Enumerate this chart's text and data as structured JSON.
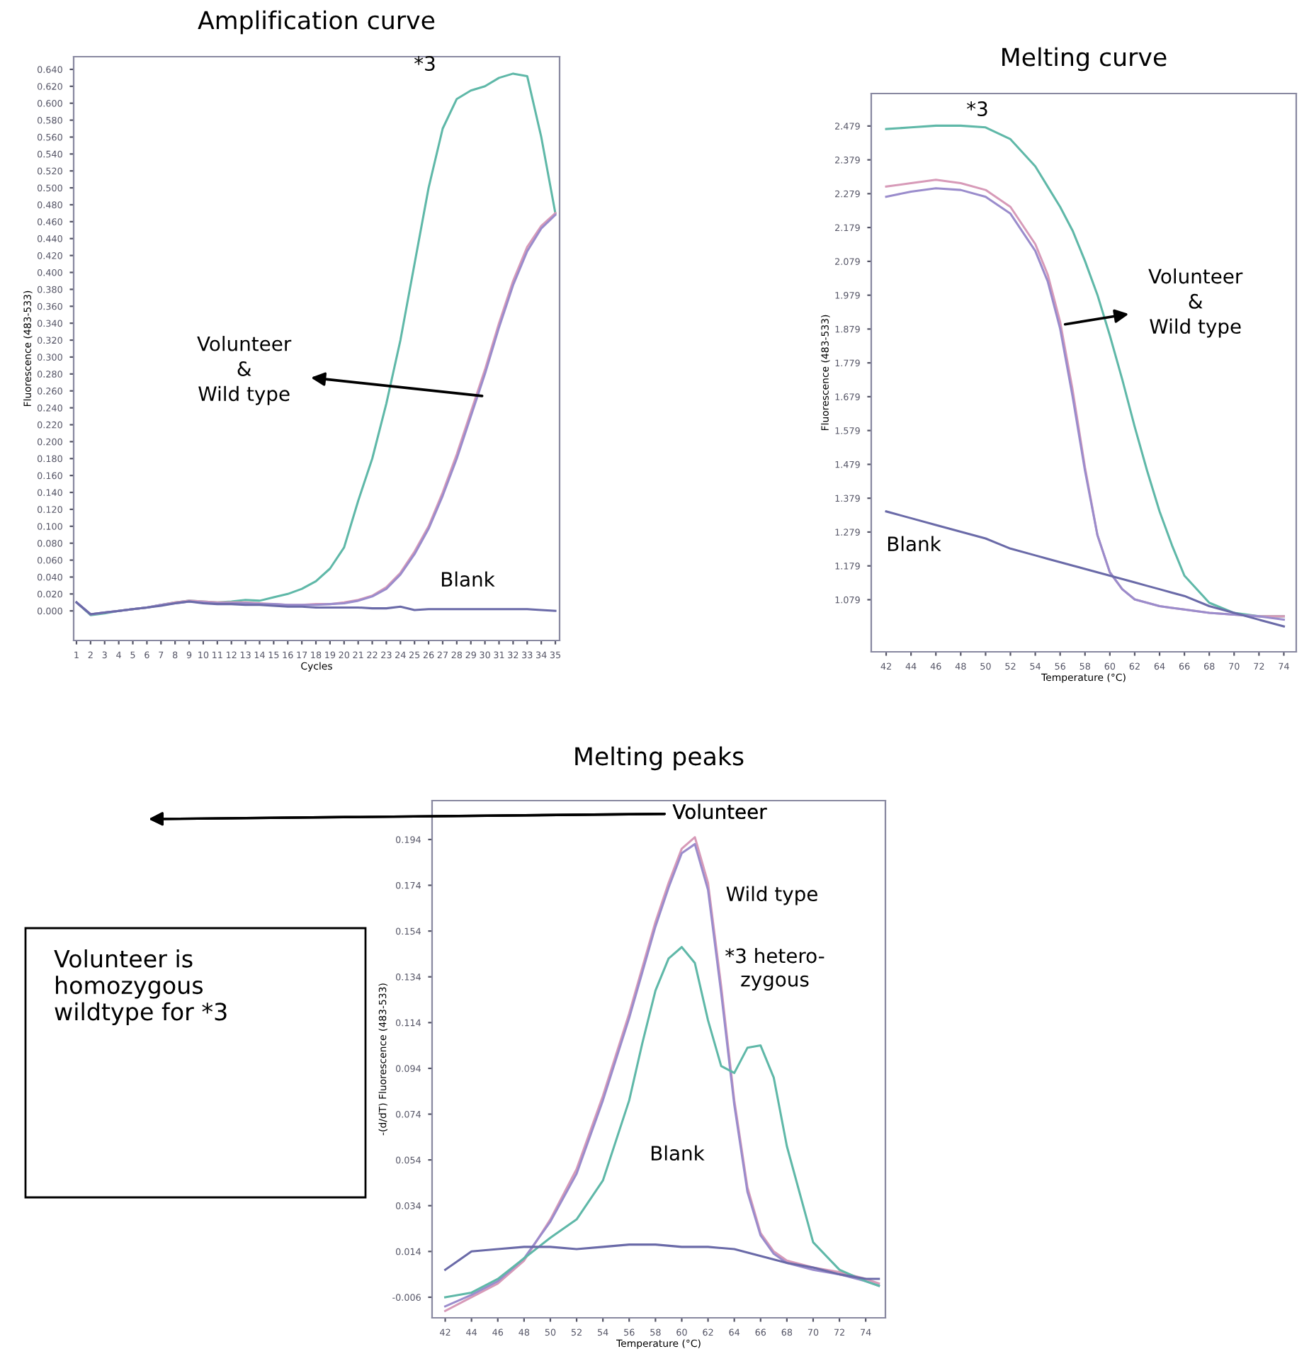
{
  "chart_data": [
    {
      "type": "line",
      "title": "Amplification curve",
      "xlabel": "Cycles",
      "ylabel": "Fluorescence (483-533)",
      "x": [
        1,
        2,
        3,
        4,
        5,
        6,
        7,
        8,
        9,
        10,
        11,
        12,
        13,
        14,
        15,
        16,
        17,
        18,
        19,
        20,
        21,
        22,
        23,
        24,
        25,
        26,
        27,
        28,
        29,
        30,
        31,
        32,
        33,
        34,
        35
      ],
      "series": [
        {
          "color": "#5fb8a8",
          "values": [
            0.01,
            -0.005,
            -0.003,
            0.0,
            0.002,
            0.004,
            0.007,
            0.01,
            0.012,
            0.011,
            0.01,
            0.011,
            0.013,
            0.012,
            0.016,
            0.02,
            0.026,
            0.035,
            0.05,
            0.075,
            0.13,
            0.18,
            0.245,
            0.32,
            0.41,
            0.5,
            0.57,
            0.605,
            0.615,
            0.62,
            0.63,
            0.635,
            0.632,
            0.56,
            0.47
          ]
        },
        {
          "color": "#d79ab8",
          "values": [
            0.01,
            -0.004,
            -0.002,
            0.0,
            0.002,
            0.004,
            0.007,
            0.01,
            0.012,
            0.011,
            0.01,
            0.01,
            0.01,
            0.009,
            0.008,
            0.007,
            0.007,
            0.008,
            0.008,
            0.01,
            0.013,
            0.018,
            0.028,
            0.045,
            0.07,
            0.1,
            0.14,
            0.185,
            0.235,
            0.285,
            0.34,
            0.39,
            0.43,
            0.455,
            0.47
          ]
        },
        {
          "color": "#9a8ccc",
          "values": [
            0.01,
            -0.004,
            -0.002,
            0.0,
            0.002,
            0.004,
            0.007,
            0.009,
            0.011,
            0.01,
            0.009,
            0.009,
            0.009,
            0.008,
            0.008,
            0.007,
            0.007,
            0.007,
            0.008,
            0.009,
            0.012,
            0.017,
            0.026,
            0.043,
            0.067,
            0.097,
            0.136,
            0.18,
            0.23,
            0.28,
            0.335,
            0.385,
            0.425,
            0.452,
            0.468
          ]
        },
        {
          "color": "#6a6aa8",
          "values": [
            0.01,
            -0.004,
            -0.002,
            0.0,
            0.002,
            0.004,
            0.006,
            0.009,
            0.011,
            0.009,
            0.008,
            0.008,
            0.007,
            0.007,
            0.006,
            0.005,
            0.005,
            0.004,
            0.004,
            0.004,
            0.004,
            0.003,
            0.003,
            0.005,
            0.001,
            0.002,
            0.002,
            0.002,
            0.002,
            0.002,
            0.002,
            0.002,
            0.002,
            0.001,
            0.0
          ]
        }
      ],
      "xlim": [
        0.8,
        35.3
      ],
      "ylim": [
        -0.035,
        0.655
      ],
      "xticks": [
        1,
        2,
        3,
        4,
        5,
        6,
        7,
        8,
        9,
        10,
        11,
        12,
        13,
        14,
        15,
        16,
        17,
        18,
        19,
        20,
        21,
        22,
        23,
        24,
        25,
        26,
        27,
        28,
        29,
        30,
        31,
        32,
        33,
        34,
        35
      ],
      "yticks": [
        {
          "value": 0.0,
          "label": "0.000"
        },
        {
          "value": 0.02,
          "label": "0.020"
        },
        {
          "value": 0.04,
          "label": "0.040"
        },
        {
          "value": 0.06,
          "label": "0.060"
        },
        {
          "value": 0.08,
          "label": "0.080"
        },
        {
          "value": 0.1,
          "label": "0.100"
        },
        {
          "value": 0.12,
          "label": "0.120"
        },
        {
          "value": 0.14,
          "label": "0.140"
        },
        {
          "value": 0.16,
          "label": "0.160"
        },
        {
          "value": 0.18,
          "label": "0.180"
        },
        {
          "value": 0.2,
          "label": "0.200"
        },
        {
          "value": 0.22,
          "label": "0.220"
        },
        {
          "value": 0.24,
          "label": "0.240"
        },
        {
          "value": 0.26,
          "label": "0.260"
        },
        {
          "value": 0.28,
          "label": "0.280"
        },
        {
          "value": 0.3,
          "label": "0.300"
        },
        {
          "value": 0.32,
          "label": "0.320"
        },
        {
          "value": 0.34,
          "label": "0.340"
        },
        {
          "value": 0.36,
          "label": "0.360"
        },
        {
          "value": 0.38,
          "label": "0.380"
        },
        {
          "value": 0.4,
          "label": "0.400"
        },
        {
          "value": 0.42,
          "label": "0.420"
        },
        {
          "value": 0.44,
          "label": "0.440"
        },
        {
          "value": 0.46,
          "label": "0.460"
        },
        {
          "value": 0.48,
          "label": "0.480"
        },
        {
          "value": 0.5,
          "label": "0.500"
        },
        {
          "value": 0.52,
          "label": "0.520"
        },
        {
          "value": 0.54,
          "label": "0.540"
        },
        {
          "value": 0.56,
          "label": "0.560"
        },
        {
          "value": 0.58,
          "label": "0.580"
        },
        {
          "value": 0.6,
          "label": "0.600"
        },
        {
          "value": 0.62,
          "label": "0.620"
        },
        {
          "value": 0.64,
          "label": "0.640"
        }
      ],
      "grid": false,
      "line_style": "solid",
      "annotations": [
        "*3",
        {
          "text": "Volunteer\n&\nWild type",
          "x": 29.8,
          "y": 0.254
        },
        "Blank"
      ]
    },
    {
      "type": "line",
      "title": "Melting curve",
      "xlabel": "Temperature (°C)",
      "ylabel": "Fluorescence (483-533)",
      "x": [
        42,
        44,
        46,
        48,
        50,
        52,
        54,
        55,
        56,
        57,
        58,
        59,
        60,
        61,
        62,
        63,
        64,
        65,
        66,
        68,
        70,
        72,
        74
      ],
      "series": [
        {
          "color": "#5fb8a8",
          "values": [
            2.47,
            2.475,
            2.48,
            2.48,
            2.475,
            2.44,
            2.36,
            2.3,
            2.24,
            2.17,
            2.08,
            1.98,
            1.86,
            1.73,
            1.59,
            1.46,
            1.34,
            1.24,
            1.15,
            1.07,
            1.04,
            1.03,
            1.03
          ]
        },
        {
          "color": "#d79ab8",
          "values": [
            2.3,
            2.31,
            2.32,
            2.31,
            2.29,
            2.24,
            2.13,
            2.04,
            1.9,
            1.7,
            1.47,
            1.27,
            1.16,
            1.11,
            1.08,
            1.07,
            1.06,
            1.055,
            1.05,
            1.04,
            1.035,
            1.03,
            1.03
          ]
        },
        {
          "color": "#9a8ccc",
          "values": [
            2.27,
            2.285,
            2.295,
            2.29,
            2.27,
            2.22,
            2.11,
            2.02,
            1.88,
            1.68,
            1.46,
            1.27,
            1.16,
            1.11,
            1.08,
            1.07,
            1.06,
            1.055,
            1.05,
            1.04,
            1.035,
            1.03,
            1.02
          ]
        },
        {
          "color": "#6a6aa8",
          "values": [
            1.34,
            1.32,
            1.3,
            1.28,
            1.26,
            1.23,
            1.21,
            1.2,
            1.19,
            1.18,
            1.17,
            1.16,
            1.15,
            1.14,
            1.13,
            1.12,
            1.11,
            1.1,
            1.09,
            1.06,
            1.04,
            1.02,
            1.0
          ]
        }
      ],
      "xlim": [
        40.8,
        75
      ],
      "ylim": [
        0.925,
        2.575
      ],
      "xticks": [
        42,
        44,
        46,
        48,
        50,
        52,
        54,
        56,
        58,
        60,
        62,
        64,
        66,
        68,
        70,
        72,
        74
      ],
      "yticks": [
        1.079,
        1.179,
        1.279,
        1.379,
        1.479,
        1.579,
        1.679,
        1.779,
        1.879,
        1.979,
        2.079,
        2.179,
        2.279,
        2.379,
        2.479
      ],
      "grid": false,
      "line_style": "solid",
      "annotations": [
        "*3",
        {
          "text": "Volunteer\n&\nWild type",
          "x": 56.4,
          "y": 1.893
        },
        "Blank"
      ]
    },
    {
      "type": "line",
      "title": "Melting peaks",
      "xlabel": "Temperature (°C)",
      "ylabel": "-(d/dT) Fluorescence (483-533)",
      "series": [
        {
          "color": "#d79ab8",
          "x": [
            42,
            44,
            46,
            48,
            50,
            52,
            54,
            56,
            57,
            58,
            59,
            60,
            61,
            62,
            63,
            64,
            65,
            66,
            67,
            68,
            70,
            72,
            74,
            75
          ],
          "values": [
            -0.012,
            -0.006,
            0.0,
            0.01,
            0.028,
            0.05,
            0.082,
            0.118,
            0.138,
            0.158,
            0.175,
            0.19,
            0.195,
            0.175,
            0.13,
            0.08,
            0.042,
            0.022,
            0.014,
            0.01,
            0.007,
            0.005,
            0.002,
            0.0
          ]
        },
        {
          "color": "#9a8ccc",
          "x": [
            42,
            44,
            46,
            48,
            50,
            52,
            54,
            56,
            57,
            58,
            59,
            60,
            61,
            62,
            63,
            64,
            65,
            66,
            67,
            68,
            70,
            72,
            74,
            75
          ],
          "values": [
            -0.01,
            -0.005,
            0.001,
            0.011,
            0.027,
            0.048,
            0.08,
            0.116,
            0.136,
            0.156,
            0.173,
            0.188,
            0.192,
            0.172,
            0.127,
            0.078,
            0.04,
            0.021,
            0.013,
            0.009,
            0.006,
            0.004,
            0.001,
            -0.001
          ]
        },
        {
          "color": "#5fb8a8",
          "x": [
            42,
            44,
            46,
            48,
            50,
            52,
            54,
            56,
            57,
            58,
            59,
            60,
            61,
            62,
            63,
            64,
            65,
            66,
            67,
            68,
            70,
            72,
            74,
            75
          ],
          "values": [
            -0.006,
            -0.004,
            0.002,
            0.011,
            0.02,
            0.028,
            0.045,
            0.08,
            0.105,
            0.128,
            0.142,
            0.147,
            0.14,
            0.115,
            0.095,
            0.092,
            0.103,
            0.104,
            0.09,
            0.06,
            0.018,
            0.006,
            0.001,
            -0.001
          ]
        },
        {
          "color": "#6a6aa8",
          "x": [
            42,
            44,
            46,
            48,
            50,
            52,
            54,
            56,
            58,
            60,
            62,
            64,
            66,
            68,
            70,
            72,
            74,
            75
          ],
          "values": [
            0.006,
            0.014,
            0.015,
            0.016,
            0.016,
            0.015,
            0.016,
            0.017,
            0.017,
            0.016,
            0.016,
            0.015,
            0.012,
            0.009,
            0.007,
            0.004,
            0.002,
            0.002
          ]
        }
      ],
      "xlim": [
        41.0,
        75.5
      ],
      "ylim": [
        -0.015,
        0.211
      ],
      "xticks": [
        42,
        44,
        46,
        48,
        50,
        52,
        54,
        56,
        58,
        60,
        62,
        64,
        66,
        68,
        70,
        72,
        74
      ],
      "yticks": [
        -0.006,
        0.014,
        0.034,
        0.054,
        0.074,
        0.094,
        0.114,
        0.134,
        0.154,
        0.174,
        0.194
      ],
      "grid": false,
      "line_style": "solid",
      "annotations": [
        "Volunteer",
        "Wild type",
        "*3 hetero-\nzygous",
        "Blank",
        "Volunteer is\nhomozygous\nwildtype for *3"
      ]
    }
  ]
}
